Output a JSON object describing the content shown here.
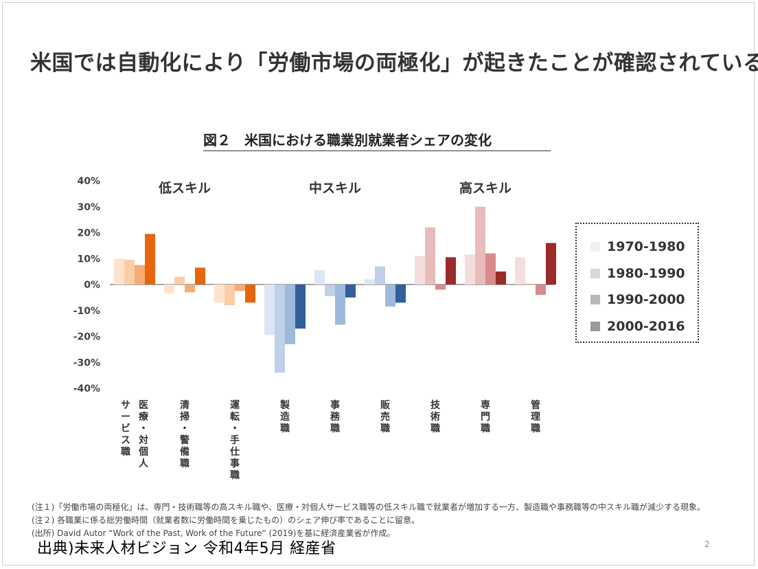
{
  "headline": "米国では自動化により「労働市場の両極化」が起きたことが確認されている。",
  "figure_title": "図２　米国における職業別就業者シェアの変化",
  "legend": [
    {
      "label": "1970-1980",
      "color": "#f1f1f1"
    },
    {
      "label": "1980-1990",
      "color": "#d8d8d8"
    },
    {
      "label": "1990-2000",
      "color": "#b8b8b8"
    },
    {
      "label": "2000-2016",
      "color": "#9a9a9a"
    }
  ],
  "notes": [
    "(注１)「労働市場の両極化」は、専門・技術職等の高スキル職や、医療・対個人サービス職等の低スキル職で就業者が増加する一方、製造職や事務職等の中スキル職が減少する現象。",
    "(注２) 各職業に係る総労働時間（就業者数に労働時間を乗じたもの）のシェア伸び率であることに留意。",
    "(出所) David Autor “Work of the Past, Work of the Future” (2019)を基に経済産業省が作成。"
  ],
  "source": "出典)未来人材ビジョン  令和4年5月  経産省",
  "page_number": "2",
  "chart_data": {
    "type": "bar",
    "ylim": [
      -40,
      40
    ],
    "yticks": [
      "40%",
      "30%",
      "20%",
      "10%",
      "0%",
      "-10%",
      "-20%",
      "-30%",
      "-40%"
    ],
    "groups": [
      {
        "label": "低スキル",
        "categories": [
          0,
          1,
          2
        ]
      },
      {
        "label": "中スキル",
        "categories": [
          3,
          4,
          5
        ]
      },
      {
        "label": "高スキル",
        "categories": [
          6,
          7,
          8
        ]
      }
    ],
    "categories": [
      {
        "label_lines": [
          "医療・対個人",
          "サービス職"
        ],
        "colors": [
          "#fde3cf",
          "#fbcca8",
          "#f6ab74",
          "#e8650f"
        ]
      },
      {
        "label_lines": [
          "清掃・警備職"
        ],
        "colors": [
          "#fde3cf",
          "#fbcca8",
          "#f6ab74",
          "#e8650f"
        ]
      },
      {
        "label_lines": [
          "運転・手仕事職"
        ],
        "colors": [
          "#fde3cf",
          "#fbcca8",
          "#f6ab74",
          "#e8650f"
        ]
      },
      {
        "label_lines": [
          "製造職"
        ],
        "colors": [
          "#dde6f3",
          "#bfd0e8",
          "#9dbadc",
          "#325f9b"
        ]
      },
      {
        "label_lines": [
          "事務職"
        ],
        "colors": [
          "#dde6f3",
          "#bfd0e8",
          "#9dbadc",
          "#325f9b"
        ]
      },
      {
        "label_lines": [
          "販売職"
        ],
        "colors": [
          "#dde6f3",
          "#bfd0e8",
          "#9dbadc",
          "#325f9b"
        ]
      },
      {
        "label_lines": [
          "技術職"
        ],
        "colors": [
          "#f3dede",
          "#e9bcbc",
          "#d98a8a",
          "#9b2a2a"
        ]
      },
      {
        "label_lines": [
          "専門職"
        ],
        "colors": [
          "#f3dede",
          "#e9bcbc",
          "#d98a8a",
          "#9b2a2a"
        ]
      },
      {
        "label_lines": [
          "管理職"
        ],
        "colors": [
          "#f3dede",
          "#e9bcbc",
          "#d98a8a",
          "#9b2a2a"
        ]
      }
    ],
    "series": [
      {
        "name": "1970-1980",
        "values": [
          10,
          -3.5,
          -7,
          -19.5,
          5.5,
          2,
          11,
          11.5,
          10.5
        ]
      },
      {
        "name": "1980-1990",
        "values": [
          9.5,
          3,
          -8,
          -34,
          -4.5,
          7,
          22,
          30,
          0
        ]
      },
      {
        "name": "1990-2000",
        "values": [
          7.5,
          -3,
          -2.5,
          -23,
          -15.5,
          -8.5,
          -2,
          12,
          -4
        ]
      },
      {
        "name": "2000-2016",
        "values": [
          19.5,
          6.5,
          -7,
          -17,
          -5,
          -7,
          10.5,
          5,
          16
        ]
      }
    ]
  }
}
